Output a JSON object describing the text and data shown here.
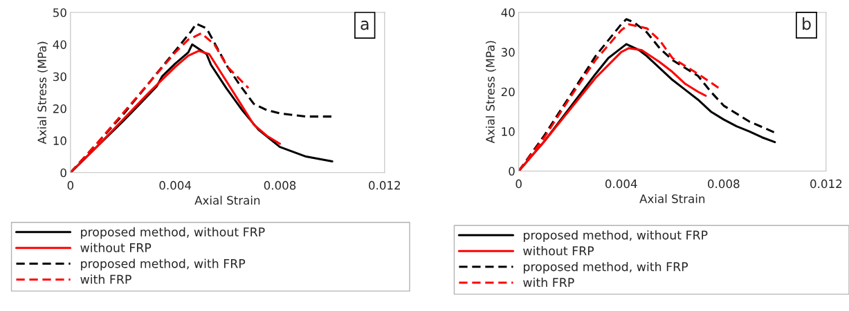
{
  "chart_data": [
    {
      "type": "line",
      "xlabel": "Axial Strain",
      "ylabel": "Axial Stress (MPa)",
      "xlim": [
        0,
        0.012
      ],
      "xticks": [
        0,
        0.004,
        0.008,
        0.012
      ],
      "ylim": [
        0,
        50
      ],
      "yticks": [
        0,
        10,
        20,
        30,
        40,
        50
      ],
      "grid": false,
      "legend": "bottom",
      "marker": "none",
      "annotations": [
        "a"
      ],
      "series": [
        {
          "name": "proposed method, without FRP",
          "color": "#000000",
          "line_style": "solid",
          "x": [
            0,
            0.002,
            0.0026,
            0.0033,
            0.0035,
            0.004,
            0.0045,
            0.00465,
            0.0052,
            0.00537,
            0.00595,
            0.00656,
            0.00718,
            0.008,
            0.009,
            0.01
          ],
          "values": [
            0,
            16,
            21,
            27,
            30,
            34,
            37.5,
            40,
            37,
            33.6,
            26.4,
            19.5,
            13.4,
            8,
            5,
            3.5
          ]
        },
        {
          "name": "without FRP",
          "color": "#ff0000",
          "line_style": "solid",
          "x": [
            0,
            0.001,
            0.002,
            0.003,
            0.004,
            0.0045,
            0.0049,
            0.0053,
            0.006,
            0.0065,
            0.007,
            0.0075,
            0.008
          ],
          "values": [
            0,
            8,
            16.5,
            25,
            33,
            36.5,
            38,
            37,
            28,
            21.5,
            15,
            11.5,
            9
          ]
        },
        {
          "name": "proposed method, with FRP",
          "color": "#000000",
          "line_style": "dashed",
          "x": [
            0,
            0.002,
            0.003,
            0.004,
            0.0044,
            0.0046,
            0.0048,
            0.0052,
            0.0054,
            0.006,
            0.0065,
            0.007,
            0.0075,
            0.008,
            0.009,
            0.01
          ],
          "values": [
            0,
            18,
            28,
            38,
            42,
            44,
            46.5,
            45,
            42,
            33,
            27,
            21.5,
            19.5,
            18.5,
            17.5,
            17.5
          ]
        },
        {
          "name": "with FRP",
          "color": "#ff0000",
          "line_style": "dashed",
          "x": [
            0,
            0.001,
            0.002,
            0.003,
            0.004,
            0.0045,
            0.005,
            0.0055,
            0.006,
            0.0068
          ],
          "values": [
            0,
            9,
            18.5,
            28,
            37.5,
            41.5,
            43.5,
            40,
            33,
            26.4
          ]
        }
      ]
    },
    {
      "type": "line",
      "xlabel": "Axial Strain",
      "ylabel": "Axial Stress (MPa)",
      "xlim": [
        0,
        0.012
      ],
      "xticks": [
        0,
        0.004,
        0.008,
        0.012
      ],
      "ylim": [
        0,
        40
      ],
      "yticks": [
        0,
        10,
        20,
        30,
        40
      ],
      "grid": false,
      "legend": "bottom",
      "marker": "none",
      "annotations": [
        "b"
      ],
      "series": [
        {
          "name": "proposed method, without FRP",
          "color": "#000000",
          "line_style": "solid",
          "x": [
            0,
            0.001,
            0.002,
            0.003,
            0.0035,
            0.004,
            0.0042,
            0.0047,
            0.005,
            0.0055,
            0.006,
            0.0065,
            0.007,
            0.0075,
            0.008,
            0.0085,
            0.009,
            0.0095,
            0.01
          ],
          "values": [
            0,
            7.5,
            16,
            24.5,
            28.5,
            31,
            32,
            30.5,
            29,
            26,
            23,
            20.5,
            18,
            15,
            13,
            11.3,
            10,
            8.5,
            7.3
          ]
        },
        {
          "name": "without FRP",
          "color": "#ff0000",
          "line_style": "solid",
          "x": [
            0,
            0.001,
            0.002,
            0.003,
            0.004,
            0.0043,
            0.0048,
            0.0055,
            0.006,
            0.0065,
            0.007,
            0.0073
          ],
          "values": [
            0,
            7.5,
            15.5,
            23.5,
            30,
            31,
            30.5,
            27.5,
            25,
            22,
            20,
            19
          ]
        },
        {
          "name": "proposed method, with FRP",
          "color": "#000000",
          "line_style": "dashed",
          "x": [
            0,
            0.001,
            0.002,
            0.003,
            0.0035,
            0.004,
            0.0042,
            0.0045,
            0.005,
            0.0055,
            0.006,
            0.007,
            0.0075,
            0.008,
            0.009,
            0.01
          ],
          "values": [
            0,
            9,
            19,
            29,
            33,
            37,
            38.3,
            37.5,
            35,
            31,
            28,
            24,
            20,
            16.5,
            12.5,
            9.7
          ]
        },
        {
          "name": "with FRP",
          "color": "#ff0000",
          "line_style": "dashed",
          "x": [
            0,
            0.001,
            0.002,
            0.003,
            0.004,
            0.0043,
            0.005,
            0.0055,
            0.006,
            0.007,
            0.0078
          ],
          "values": [
            0,
            8.5,
            18.5,
            28,
            35.5,
            37,
            36,
            33,
            28.5,
            24.5,
            21
          ]
        }
      ]
    }
  ]
}
